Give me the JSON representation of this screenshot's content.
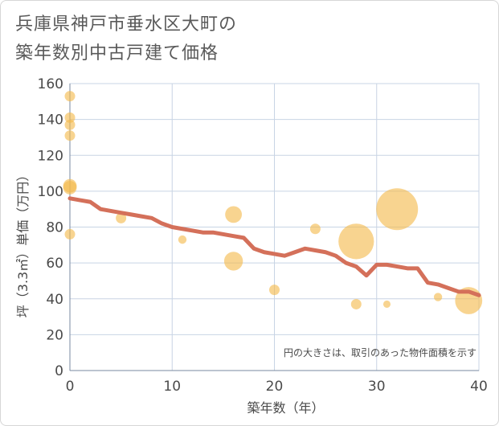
{
  "page": {
    "title_line1": "兵庫県神戸市垂水区大町の",
    "title_line2": "築年数別中古戸建て価格"
  },
  "chart_data": {
    "type": "scatter",
    "title": "兵庫県神戸市垂水区大町の築年数別中古戸建て価格",
    "xlabel": "築年数（年）",
    "ylabel": "坪（3.3㎡）単価（万円）",
    "xlim": [
      0,
      40
    ],
    "ylim": [
      0,
      160
    ],
    "xticks": [
      0,
      10,
      20,
      30,
      40
    ],
    "yticks": [
      0,
      20,
      40,
      60,
      80,
      100,
      120,
      140,
      160
    ],
    "grid": true,
    "note": "円の大きさは、取引のあった物件面積を示す",
    "colors": {
      "bubble": "#f4b94c",
      "line": "#d4705a",
      "grid": "#c8d4e4"
    },
    "points": [
      {
        "x": 0,
        "y": 153,
        "size": 1
      },
      {
        "x": 0,
        "y": 141,
        "size": 1
      },
      {
        "x": 0,
        "y": 137,
        "size": 1
      },
      {
        "x": 0,
        "y": 131,
        "size": 1
      },
      {
        "x": 0,
        "y": 103,
        "size": 1.3
      },
      {
        "x": 0,
        "y": 102,
        "size": 1.3
      },
      {
        "x": 0,
        "y": 76,
        "size": 1
      },
      {
        "x": 5,
        "y": 85,
        "size": 1
      },
      {
        "x": 11,
        "y": 73,
        "size": 0.8
      },
      {
        "x": 16,
        "y": 87,
        "size": 1.6
      },
      {
        "x": 16,
        "y": 61,
        "size": 1.8
      },
      {
        "x": 20,
        "y": 45,
        "size": 1
      },
      {
        "x": 24,
        "y": 79,
        "size": 1
      },
      {
        "x": 28,
        "y": 72,
        "size": 3.4
      },
      {
        "x": 28,
        "y": 37,
        "size": 1
      },
      {
        "x": 31,
        "y": 37,
        "size": 0.7
      },
      {
        "x": 32,
        "y": 90,
        "size": 4
      },
      {
        "x": 36,
        "y": 41,
        "size": 0.8
      },
      {
        "x": 39,
        "y": 39,
        "size": 2.6
      }
    ],
    "trend": {
      "x": [
        0,
        1,
        2,
        3,
        4,
        5,
        6,
        7,
        8,
        9,
        10,
        11,
        12,
        13,
        14,
        15,
        16,
        17,
        18,
        19,
        20,
        21,
        22,
        23,
        24,
        25,
        26,
        27,
        28,
        29,
        30,
        31,
        32,
        33,
        34,
        35,
        36,
        37,
        38,
        39,
        40
      ],
      "y": [
        96,
        95,
        94,
        90,
        89,
        88,
        87,
        86,
        85,
        82,
        80,
        79,
        78,
        77,
        77,
        76,
        75,
        74,
        68,
        66,
        65,
        64,
        66,
        68,
        67,
        66,
        64,
        60,
        58,
        53,
        59,
        59,
        58,
        57,
        57,
        49,
        48,
        46,
        44,
        44,
        42
      ]
    }
  }
}
